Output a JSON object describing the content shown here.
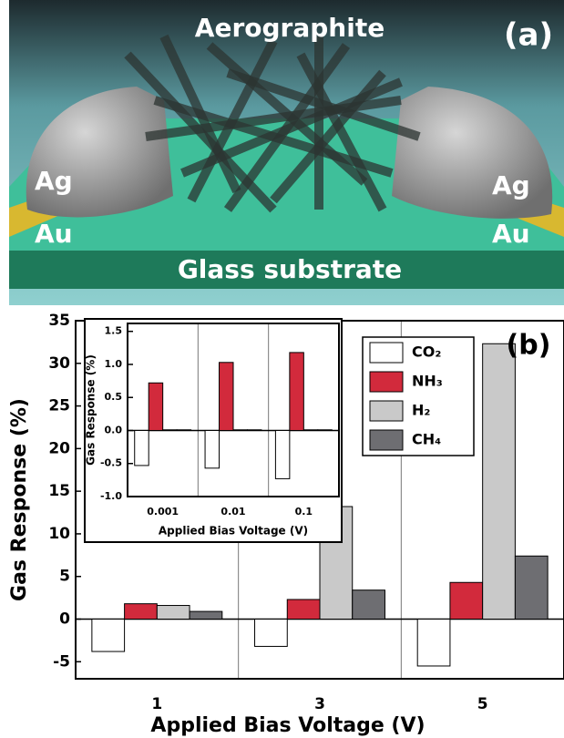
{
  "illustration": {
    "title": "Aerographite",
    "panel_label": "(a)",
    "left_top": "Ag",
    "right_top": "Ag",
    "left_bottom": "Au",
    "right_bottom": "Au",
    "substrate": "Glass substrate"
  },
  "chart_data": [
    {
      "type": "bar",
      "panel_label": "(b)",
      "x_label": "Applied Bias Voltage (V)",
      "y_label": "Gas Response (%)",
      "categories": [
        "1",
        "3",
        "5"
      ],
      "series": [
        {
          "name": "CO₂",
          "color": "#ffffff",
          "values": [
            -3.8,
            -3.2,
            -5.5
          ]
        },
        {
          "name": "NH₃",
          "color": "#d22a3c",
          "values": [
            1.8,
            2.3,
            4.3
          ]
        },
        {
          "name": "H₂",
          "color": "#c9c9c9",
          "values": [
            1.6,
            13.2,
            32.3
          ]
        },
        {
          "name": "CH₄",
          "color": "#6e6e72",
          "values": [
            0.9,
            3.4,
            7.4
          ]
        }
      ],
      "ylim": [
        -7,
        35
      ],
      "yticks": [
        -5,
        0,
        5,
        10,
        15,
        20,
        25,
        30,
        35
      ]
    },
    {
      "type": "bar",
      "x_label": "Applied Bias Voltage (V)",
      "y_label": "Gas Response (%)",
      "categories": [
        "0.001",
        "0.01",
        "0.1"
      ],
      "series": [
        {
          "color": "#ffffff",
          "values": [
            -0.53,
            -0.57,
            -0.73
          ]
        },
        {
          "color": "#d22a3c",
          "values": [
            0.72,
            1.03,
            1.18
          ]
        },
        {
          "color": "#c9c9c9",
          "values": [
            0.01,
            0.01,
            0.01
          ]
        },
        {
          "color": "#6e6e72",
          "values": [
            0.01,
            0.01,
            0.01
          ]
        }
      ],
      "ylim": [
        -1,
        1.62
      ],
      "yticks": [
        {
          "value": -1,
          "label": "-1.0"
        },
        -0.5,
        {
          "value": 0,
          "label": "0.0"
        },
        0.5,
        {
          "value": 1,
          "label": "1.0"
        },
        1.5
      ]
    }
  ]
}
